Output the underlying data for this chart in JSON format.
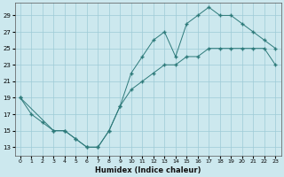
{
  "xlabel": "Humidex (Indice chaleur)",
  "bg_color": "#cce8ee",
  "grid_color": "#9ecbd6",
  "line_color": "#2d7a7a",
  "xlim": [
    -0.5,
    23.5
  ],
  "ylim": [
    12,
    30.5
  ],
  "xticks": [
    0,
    1,
    2,
    3,
    4,
    5,
    6,
    7,
    8,
    9,
    10,
    11,
    12,
    13,
    14,
    15,
    16,
    17,
    18,
    19,
    20,
    21,
    22,
    23
  ],
  "yticks": [
    13,
    15,
    17,
    19,
    21,
    23,
    25,
    27,
    29
  ],
  "line1_x": [
    0,
    1,
    2,
    3,
    4,
    5,
    6,
    7,
    8,
    9,
    10,
    11,
    12,
    13,
    14,
    15,
    16,
    17,
    18,
    19,
    20,
    21,
    22,
    23
  ],
  "line1_y": [
    19,
    17,
    16,
    15,
    15,
    14,
    13,
    13,
    15,
    18,
    22,
    24,
    26,
    27,
    24,
    28,
    29,
    30,
    29,
    29,
    28,
    27,
    26,
    25
  ],
  "line2_x": [
    0,
    3,
    4,
    5,
    6,
    7,
    8,
    9,
    10,
    11,
    12,
    13,
    14,
    15,
    16,
    17,
    18,
    19,
    20,
    21,
    22,
    23
  ],
  "line2_y": [
    19,
    15,
    15,
    14,
    13,
    13,
    15,
    18,
    20,
    21,
    22,
    23,
    23,
    24,
    24,
    25,
    25,
    25,
    25,
    25,
    25,
    23
  ]
}
